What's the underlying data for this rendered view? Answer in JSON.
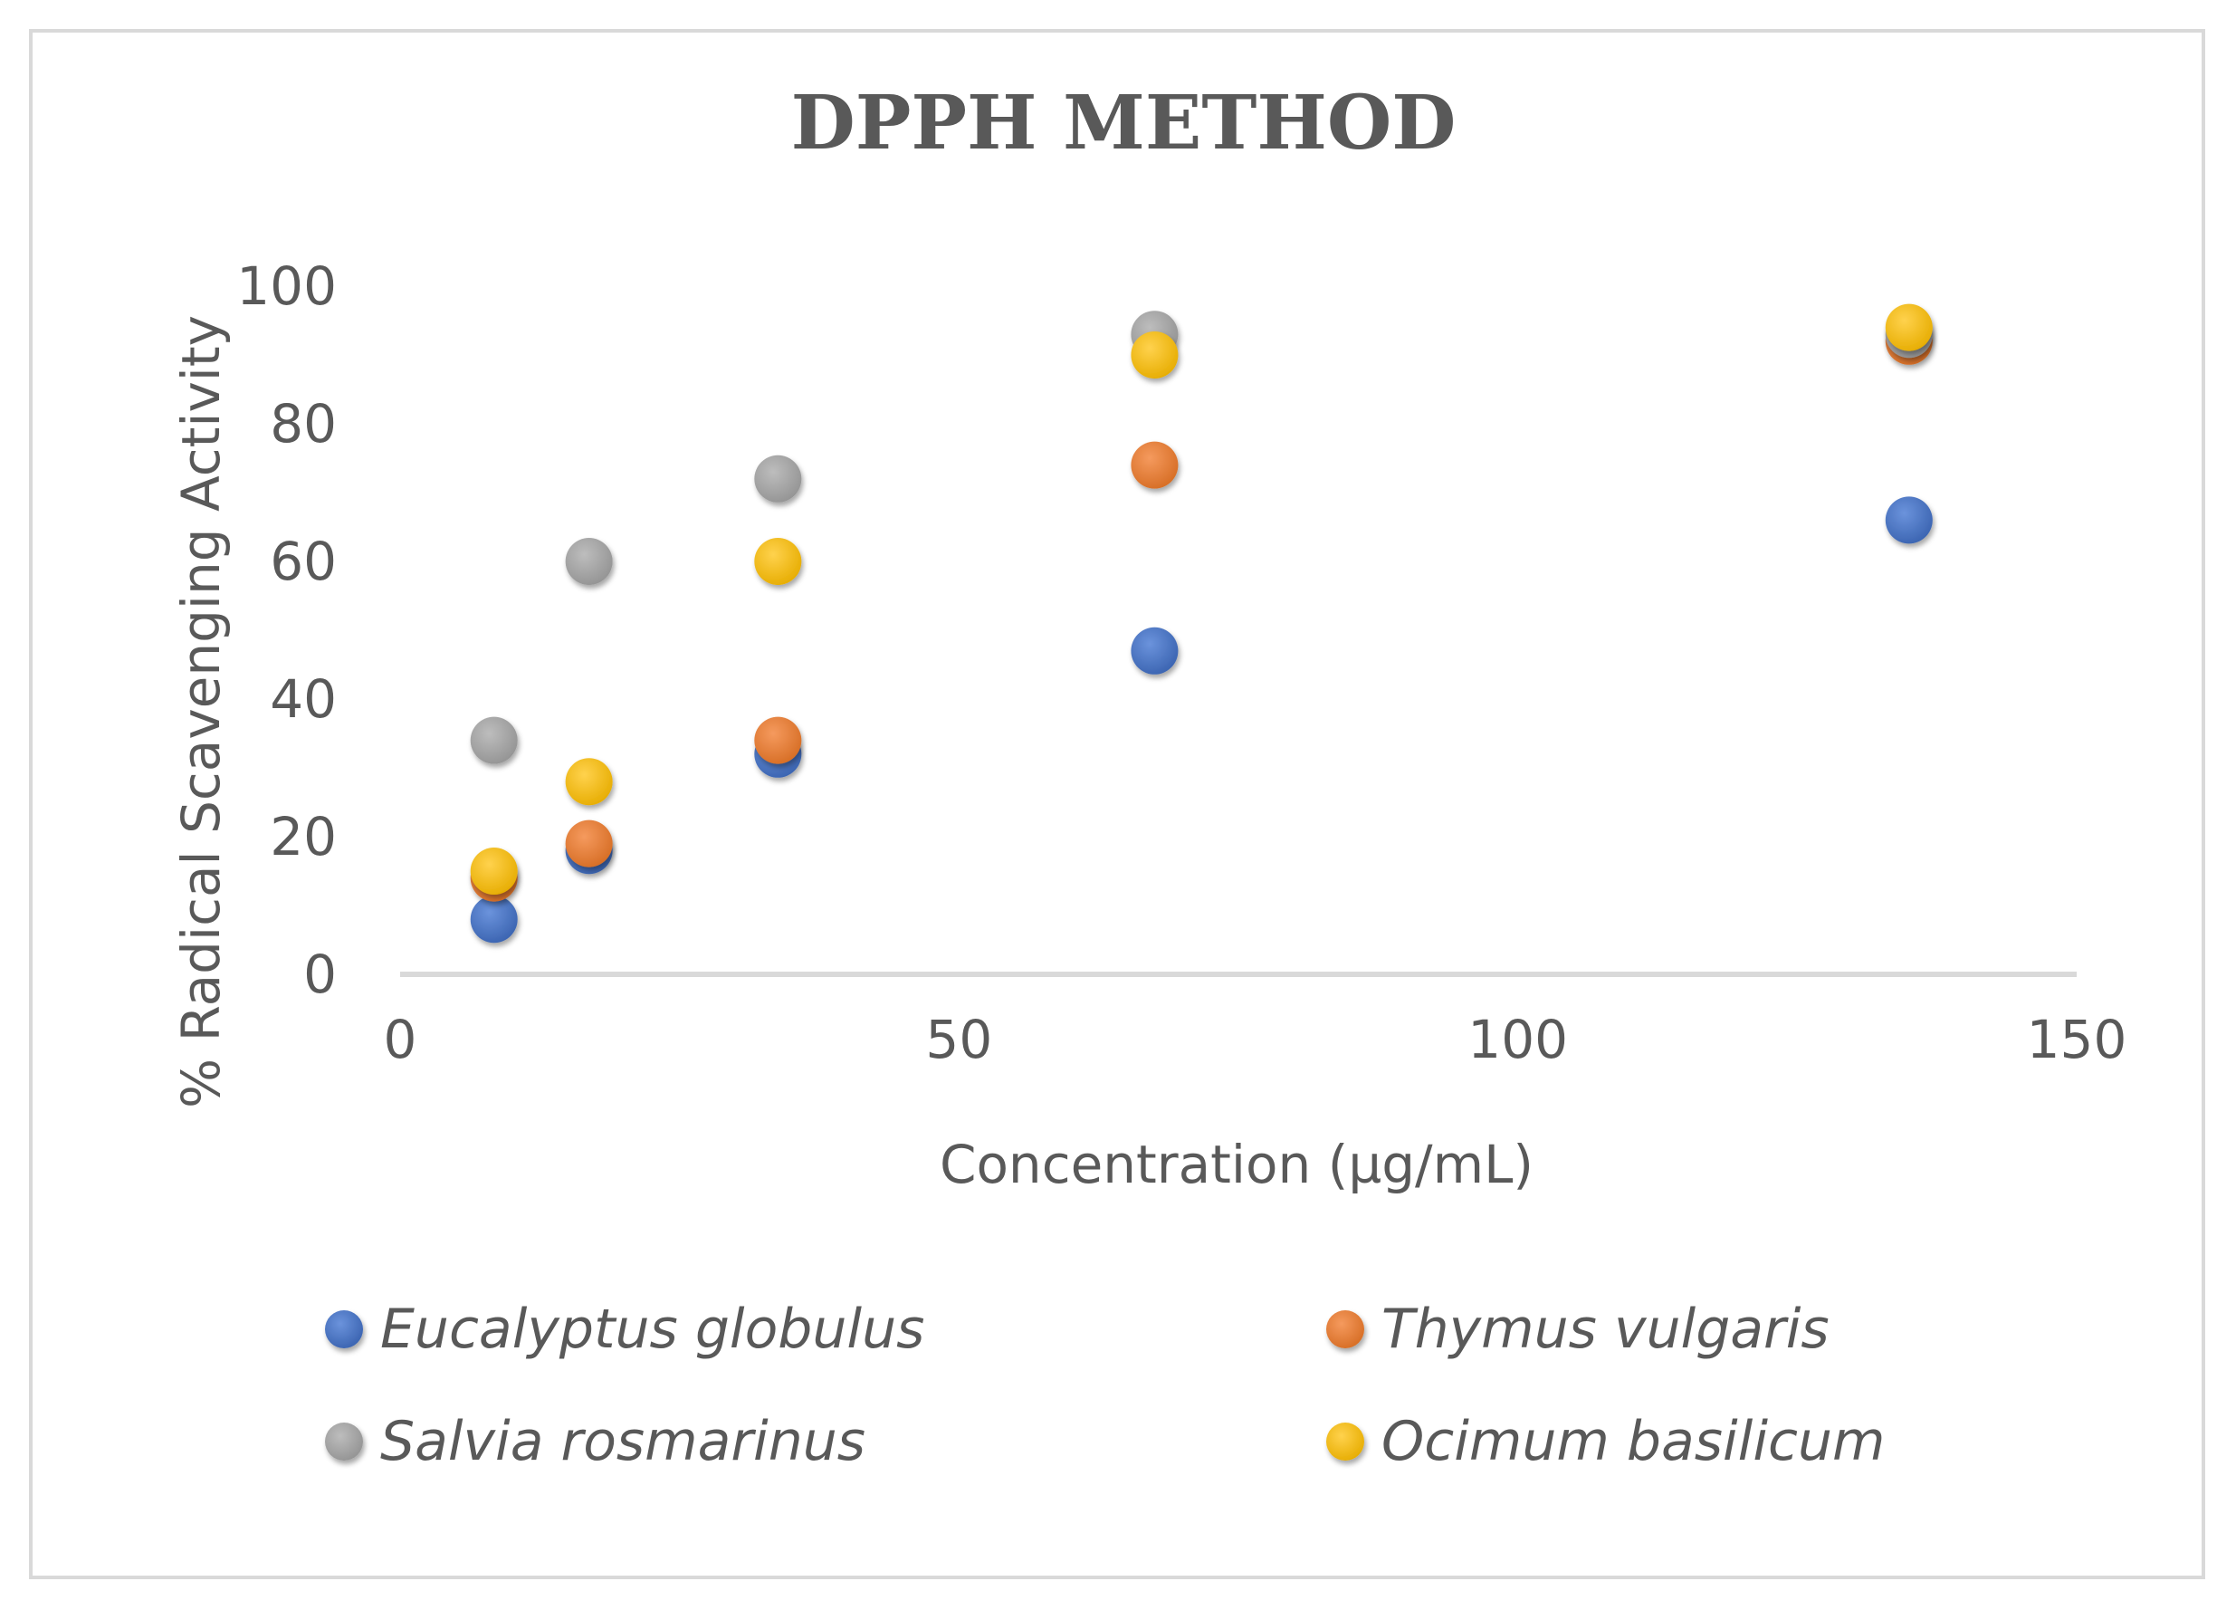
{
  "chart_data": {
    "type": "scatter",
    "title": "DPPH METHOD",
    "xlabel": "Concentration (µg/mL)",
    "ylabel": "% Radical Scavenging Activity",
    "xlim": [
      0,
      150
    ],
    "ylim": [
      0,
      100
    ],
    "xticks": [
      0,
      50,
      100,
      150
    ],
    "yticks": [
      0,
      20,
      40,
      60,
      80,
      100
    ],
    "grid": false,
    "legend_position": "bottom",
    "series": [
      {
        "name": "Eucalyptus globulus",
        "color": "#4472c4",
        "x": [
          8.4,
          16.9,
          33.8,
          67.5,
          135
        ],
        "y": [
          8,
          18,
          32,
          47,
          66
        ]
      },
      {
        "name": "Thymus vulgaris",
        "color": "#ed7d31",
        "x": [
          8.4,
          16.9,
          33.8,
          67.5,
          135
        ],
        "y": [
          14,
          19,
          34,
          74,
          92
        ]
      },
      {
        "name": "Salvia rosmarinus",
        "color": "#a5a5a5",
        "x": [
          8.4,
          16.9,
          33.8,
          67.5,
          135
        ],
        "y": [
          34,
          60,
          72,
          93,
          93
        ]
      },
      {
        "name": "Ocimum basilicum",
        "color": "#ffc000",
        "x": [
          8.4,
          16.9,
          33.8,
          67.5,
          135
        ],
        "y": [
          15,
          28,
          60,
          90,
          94
        ]
      }
    ]
  },
  "colors": {
    "axis": "#d9d9d9",
    "text": "#595959",
    "frame": "#d9d9d9"
  }
}
